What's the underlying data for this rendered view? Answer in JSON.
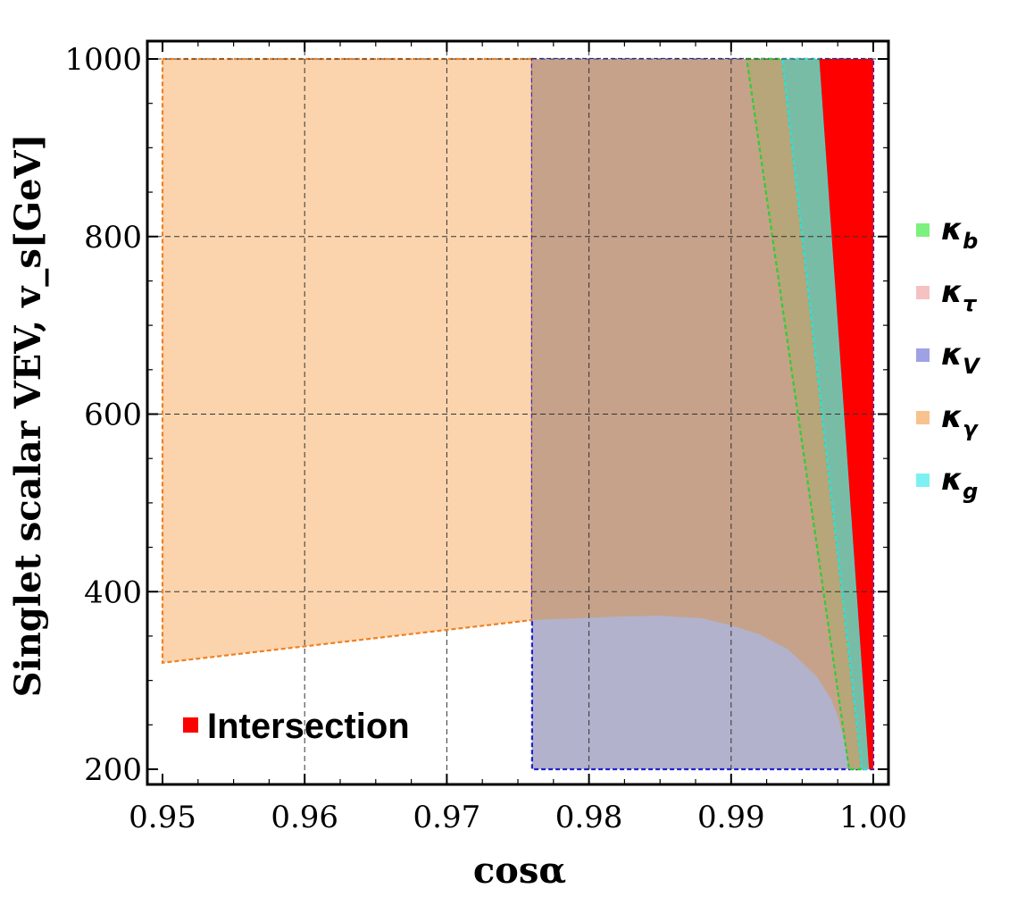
{
  "chart_data": {
    "type": "area",
    "title": "",
    "xlabel": "cosα",
    "ylabel": "Singlet scalar VEV, v_s[GeV]",
    "xlim": [
      0.95,
      1.0
    ],
    "ylim": [
      200,
      1000
    ],
    "x_ticks": [
      "0.95",
      "0.96",
      "0.97",
      "0.98",
      "0.99",
      "1.00"
    ],
    "y_ticks": [
      "200",
      "400",
      "600",
      "800",
      "1000"
    ],
    "grid": true,
    "legend_position": "right",
    "legend": [
      {
        "symbol": "κ",
        "sub": "b",
        "color": "#66ee66"
      },
      {
        "symbol": "κ",
        "sub": "τ",
        "color": "#f4b6b6"
      },
      {
        "symbol": "κ",
        "sub": "V",
        "color": "#8f8fe0"
      },
      {
        "symbol": "κ",
        "sub": "γ",
        "color": "#f7b77a"
      },
      {
        "symbol": "κ",
        "sub": "g",
        "color": "#66eeee"
      }
    ],
    "annotation": {
      "label": "Intersection",
      "color": "#ff0000"
    },
    "regions": [
      {
        "name": "κγ",
        "color": "#fbd4ad",
        "stroke": "#f08020",
        "polygon": [
          [
            0.95,
            1000
          ],
          [
            0.976,
            1000
          ],
          [
            0.976,
            368
          ],
          [
            0.95,
            320
          ]
        ]
      },
      {
        "name": "κV",
        "color": "#b2b2cc",
        "stroke": "#2020d0",
        "polygon": [
          [
            0.976,
            1000
          ],
          [
            1.0,
            1000
          ],
          [
            1.0,
            200
          ],
          [
            0.976,
            200
          ]
        ]
      },
      {
        "name": "κγ ∩ κV",
        "color": "#c6a28a",
        "stroke": "none",
        "polygon": [
          [
            0.976,
            1000
          ],
          [
            0.9911,
            1000
          ],
          [
            0.9983,
            200
          ],
          [
            0.998,
            230
          ],
          [
            0.9975,
            260
          ],
          [
            0.997,
            280
          ],
          [
            0.996,
            305
          ],
          [
            0.994,
            335
          ],
          [
            0.992,
            352
          ],
          [
            0.99,
            362
          ],
          [
            0.988,
            370
          ],
          [
            0.985,
            373
          ],
          [
            0.982,
            372
          ],
          [
            0.979,
            370
          ],
          [
            0.976,
            368
          ]
        ]
      },
      {
        "name": "κb",
        "color": "#b7a67a",
        "stroke": "#33cc33",
        "polygon": [
          [
            0.9911,
            1000
          ],
          [
            0.9936,
            1000
          ],
          [
            0.9992,
            200
          ],
          [
            0.9983,
            200
          ]
        ]
      },
      {
        "name": "κg",
        "color": "#79bca5",
        "stroke": "#33dddd",
        "polygon": [
          [
            0.9936,
            1000
          ],
          [
            0.9962,
            1000
          ],
          [
            0.9997,
            200
          ],
          [
            0.9992,
            200
          ]
        ]
      },
      {
        "name": "Intersection",
        "color": "#ff0000",
        "stroke": "none",
        "polygon": [
          [
            0.9962,
            1000
          ],
          [
            1.0,
            1000
          ],
          [
            1.0,
            200
          ],
          [
            0.9997,
            200
          ]
        ]
      }
    ]
  }
}
